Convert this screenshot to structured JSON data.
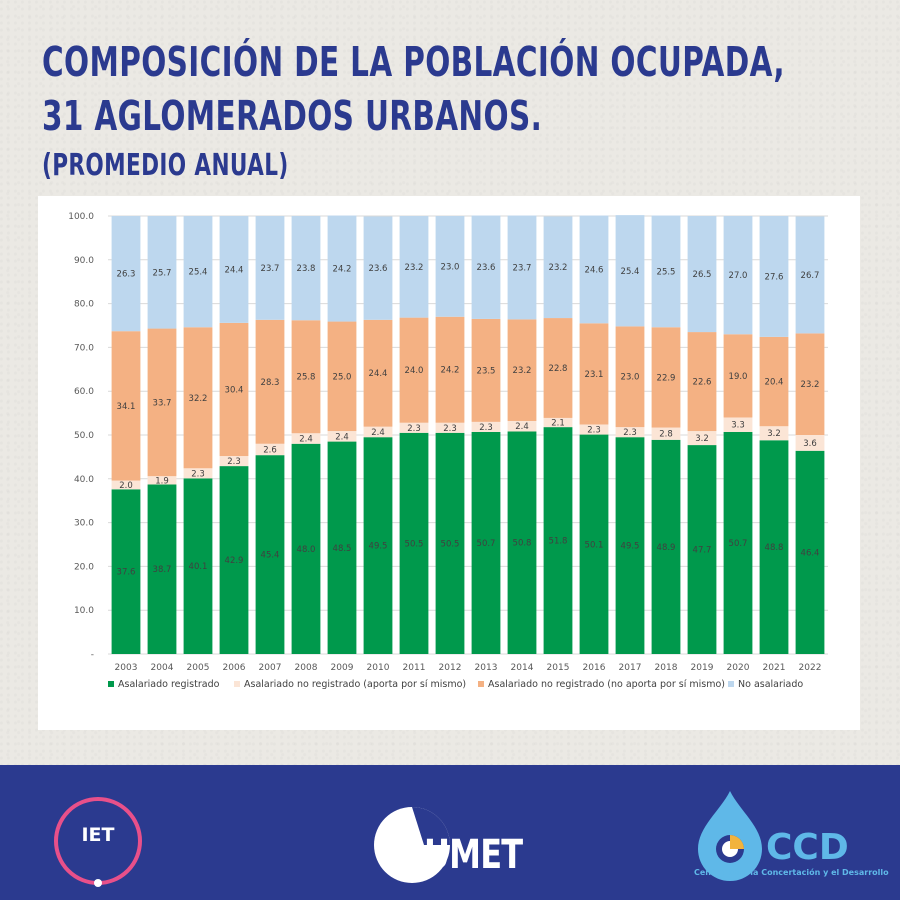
{
  "header": {
    "title_line1": "COMPOSICIÓN DE LA POBLACIÓN OCUPADA,",
    "title_line2": "31 AGLOMERADOS URBANOS.",
    "subtitle": "(PROMEDIO ANUAL)"
  },
  "chart_data": {
    "type": "bar",
    "stacked": true,
    "categories": [
      "2003",
      "2004",
      "2005",
      "2006",
      "2007",
      "2008",
      "2009",
      "2010",
      "2011",
      "2012",
      "2013",
      "2014",
      "2015",
      "2016",
      "2017",
      "2018",
      "2019",
      "2020",
      "2021",
      "2022"
    ],
    "ylim": [
      0,
      100
    ],
    "yticks": [
      "-",
      "10.0",
      "20.0",
      "30.0",
      "40.0",
      "50.0",
      "60.0",
      "70.0",
      "80.0",
      "90.0",
      "100.0"
    ],
    "grid": true,
    "legend_position": "bottom",
    "series": [
      {
        "name": "Asalariado registrado",
        "color": "#00994c",
        "values": [
          37.6,
          38.7,
          40.1,
          42.9,
          45.4,
          48.0,
          48.5,
          49.5,
          50.5,
          50.5,
          50.7,
          50.8,
          51.8,
          50.1,
          49.5,
          48.9,
          47.7,
          50.7,
          48.8,
          46.4
        ],
        "labels": [
          "37.6",
          "38.7",
          "40.1",
          "42.9",
          "45.4",
          "48.0",
          "48.5",
          "49.5",
          "50.5",
          "50.5",
          "50.7",
          "50.8",
          "51.8",
          "50.1",
          "49.5",
          "48.9",
          "47.7",
          "50.7",
          "48.8",
          "46.4"
        ]
      },
      {
        "name": "Asalariado no registrado (aporta por sí mismo)",
        "color": "#fbe5d6",
        "values": [
          2.0,
          1.9,
          2.3,
          2.3,
          2.6,
          2.4,
          2.4,
          2.4,
          2.3,
          2.3,
          2.3,
          2.4,
          2.1,
          2.3,
          2.3,
          2.8,
          3.2,
          3.3,
          3.2,
          3.6
        ],
        "labels": [
          "2.0",
          "1.9",
          "2.3",
          "2.3",
          "2.6",
          "2.4",
          "2.4",
          "2.4",
          "2.3",
          "2.3",
          "2.3",
          "2.4",
          "2.1",
          "2.3",
          "2.3",
          "2.8",
          "3.2",
          "3.3",
          "3.2",
          "3.6"
        ]
      },
      {
        "name": "Asalariado no registrado (no aporta por sí mismo)",
        "color": "#f4b183",
        "values": [
          34.1,
          33.7,
          32.2,
          30.4,
          28.3,
          25.8,
          25.0,
          24.4,
          24.0,
          24.2,
          23.5,
          23.2,
          22.8,
          23.1,
          23.0,
          22.9,
          22.6,
          19.0,
          20.4,
          23.2
        ],
        "labels": [
          "34.1",
          "33.7",
          "32.2",
          "30.4",
          "28.3",
          "25.8",
          "25.0",
          "24.4",
          "24.0",
          "24.2",
          "23.5",
          "23.2",
          "22.8",
          "23.1",
          "23.0",
          "22.9",
          "22.6",
          "19.0",
          "20.4",
          "23.2"
        ]
      },
      {
        "name": "No asalariado",
        "color": "#bdd7ee",
        "values": [
          26.3,
          25.7,
          25.4,
          24.4,
          23.7,
          23.8,
          24.2,
          23.6,
          23.2,
          23.0,
          23.6,
          23.7,
          23.2,
          24.6,
          25.4,
          25.5,
          26.5,
          27.0,
          27.6,
          26.7
        ],
        "labels": [
          "26.3",
          "25.7",
          "25.4",
          "24.4",
          "23.7",
          "23.8",
          "24.2",
          "23.6",
          "23.2",
          "23.0",
          "23.6",
          "23.7",
          "23.2",
          "24.6",
          "25.4",
          "25.5",
          "26.5",
          "27.0",
          "27.6",
          "26.7"
        ]
      }
    ]
  },
  "footer": {
    "iet_label": "IET",
    "umet_label": "UMET",
    "ccd_label": "CCD",
    "ccd_full_name": "Centro para la Concertación y el Desarrollo",
    "colors": {
      "background": "#2b3a8f",
      "iet_ring": "#e8508a",
      "ccd_blue": "#5fb8e8"
    }
  }
}
